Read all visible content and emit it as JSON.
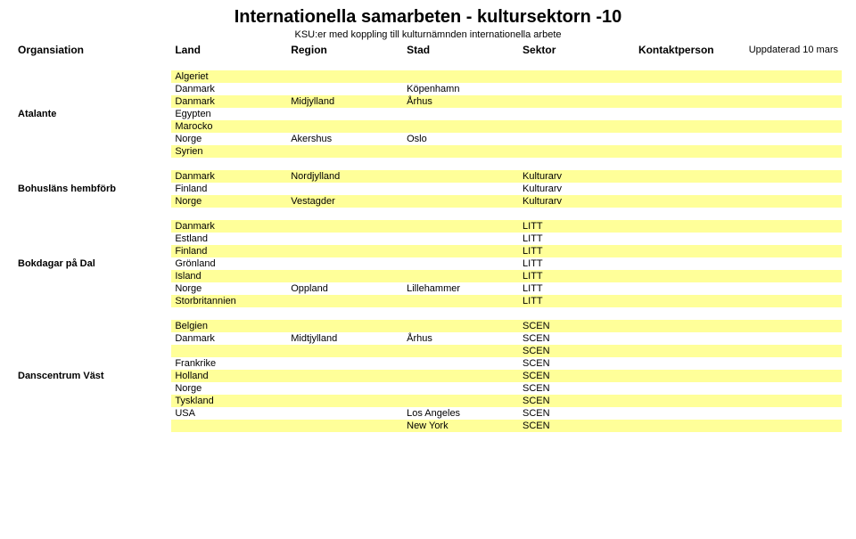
{
  "title": "Internationella samarbeten - kultursektorn -10",
  "subtitle": "KSU:er med koppling till kulturnämnden internationella arbete",
  "update_note": "Uppdaterad 10 mars",
  "columns": {
    "org": "Organsiation",
    "land": "Land",
    "region": "Region",
    "stad": "Stad",
    "sektor": "Sektor",
    "kontakt": "Kontaktperson"
  },
  "groups": [
    {
      "org": "Atalante",
      "rows": [
        {
          "land": "Algeriet",
          "region": "",
          "stad": "",
          "sektor": "",
          "stripe": "yellow"
        },
        {
          "land": "Danmark",
          "region": "",
          "stad": "Köpenhamn",
          "sektor": "",
          "stripe": "white"
        },
        {
          "land": "Danmark",
          "region": "Midjylland",
          "stad": "Århus",
          "sektor": "",
          "stripe": "yellow"
        },
        {
          "land": "Egypten",
          "region": "",
          "stad": "",
          "sektor": "",
          "stripe": "white"
        },
        {
          "land": "Marocko",
          "region": "",
          "stad": "",
          "sektor": "",
          "stripe": "yellow"
        },
        {
          "land": "Norge",
          "region": "Akershus",
          "stad": "Oslo",
          "sektor": "",
          "stripe": "white"
        },
        {
          "land": "Syrien",
          "region": "",
          "stad": "",
          "sektor": "",
          "stripe": "yellow"
        }
      ]
    },
    {
      "org": "Bohusläns hembförb",
      "rows": [
        {
          "land": "Danmark",
          "region": "Nordjylland",
          "stad": "",
          "sektor": "Kulturarv",
          "stripe": "yellow"
        },
        {
          "land": "Finland",
          "region": "",
          "stad": "",
          "sektor": "Kulturarv",
          "stripe": "white"
        },
        {
          "land": "Norge",
          "region": "Vestagder",
          "stad": "",
          "sektor": "Kulturarv",
          "stripe": "yellow"
        }
      ]
    },
    {
      "org": "Bokdagar på Dal",
      "rows": [
        {
          "land": "Danmark",
          "region": "",
          "stad": "",
          "sektor": "LITT",
          "stripe": "yellow"
        },
        {
          "land": "Estland",
          "region": "",
          "stad": "",
          "sektor": "LITT",
          "stripe": "white"
        },
        {
          "land": "Finland",
          "region": "",
          "stad": "",
          "sektor": "LITT",
          "stripe": "yellow"
        },
        {
          "land": "Grönland",
          "region": "",
          "stad": "",
          "sektor": "LITT",
          "stripe": "white"
        },
        {
          "land": "Island",
          "region": "",
          "stad": "",
          "sektor": "LITT",
          "stripe": "yellow"
        },
        {
          "land": "Norge",
          "region": "Oppland",
          "stad": "Lillehammer",
          "sektor": "LITT",
          "stripe": "white"
        },
        {
          "land": "Storbritannien",
          "region": "",
          "stad": "",
          "sektor": "LITT",
          "stripe": "yellow"
        }
      ]
    },
    {
      "org": "Danscentrum Väst",
      "rows": [
        {
          "land": "Belgien",
          "region": "",
          "stad": "",
          "sektor": "SCEN",
          "stripe": "yellow"
        },
        {
          "land": "Danmark",
          "region": "Midtjylland",
          "stad": "Århus",
          "sektor": "SCEN",
          "stripe": "white"
        },
        {
          "land": "",
          "region": "",
          "stad": "",
          "sektor": "SCEN",
          "stripe": "yellow"
        },
        {
          "land": "Frankrike",
          "region": "",
          "stad": "",
          "sektor": "SCEN",
          "stripe": "white"
        },
        {
          "land": "Holland",
          "region": "",
          "stad": "",
          "sektor": "SCEN",
          "stripe": "yellow"
        },
        {
          "land": "Norge",
          "region": "",
          "stad": "",
          "sektor": "SCEN",
          "stripe": "white"
        },
        {
          "land": "Tyskland",
          "region": "",
          "stad": "",
          "sektor": "SCEN",
          "stripe": "yellow"
        },
        {
          "land": "USA",
          "region": "",
          "stad": "Los Angeles",
          "sektor": "SCEN",
          "stripe": "white"
        },
        {
          "land": "",
          "region": "",
          "stad": "New York",
          "sektor": "SCEN",
          "stripe": "yellow"
        }
      ]
    }
  ]
}
